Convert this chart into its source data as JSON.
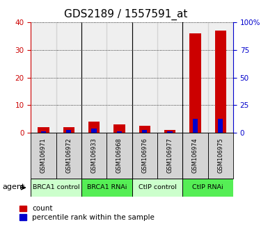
{
  "title": "GDS2189 / 1557591_at",
  "samples": [
    "GSM106971",
    "GSM106972",
    "GSM106933",
    "GSM106968",
    "GSM106976",
    "GSM106977",
    "GSM106974",
    "GSM106975"
  ],
  "count_values": [
    2.0,
    2.0,
    4.0,
    3.0,
    2.5,
    1.0,
    36.0,
    37.0
  ],
  "pct_values": [
    1.25,
    2.5,
    3.75,
    1.25,
    2.5,
    1.25,
    12.5,
    12.5
  ],
  "groups": [
    {
      "label": "BRCA1 control",
      "start": 0,
      "end": 2,
      "color": "#ccffcc"
    },
    {
      "label": "BRCA1 RNAi",
      "start": 2,
      "end": 4,
      "color": "#55ee55"
    },
    {
      "label": "CtIP control",
      "start": 4,
      "end": 6,
      "color": "#ccffcc"
    },
    {
      "label": "CtIP RNAi",
      "start": 6,
      "end": 8,
      "color": "#55ee55"
    }
  ],
  "ylim_left": [
    0,
    40
  ],
  "ylim_right": [
    0,
    100
  ],
  "yticks_left": [
    0,
    10,
    20,
    30,
    40
  ],
  "yticks_right": [
    0,
    25,
    50,
    75,
    100
  ],
  "bar_color_red": "#cc0000",
  "bar_color_blue": "#0000cc",
  "left_axis_color": "#cc0000",
  "right_axis_color": "#0000cc",
  "legend_red": "count",
  "legend_blue": "percentile rank within the sample",
  "agent_label": "agent",
  "title_fontsize": 11
}
